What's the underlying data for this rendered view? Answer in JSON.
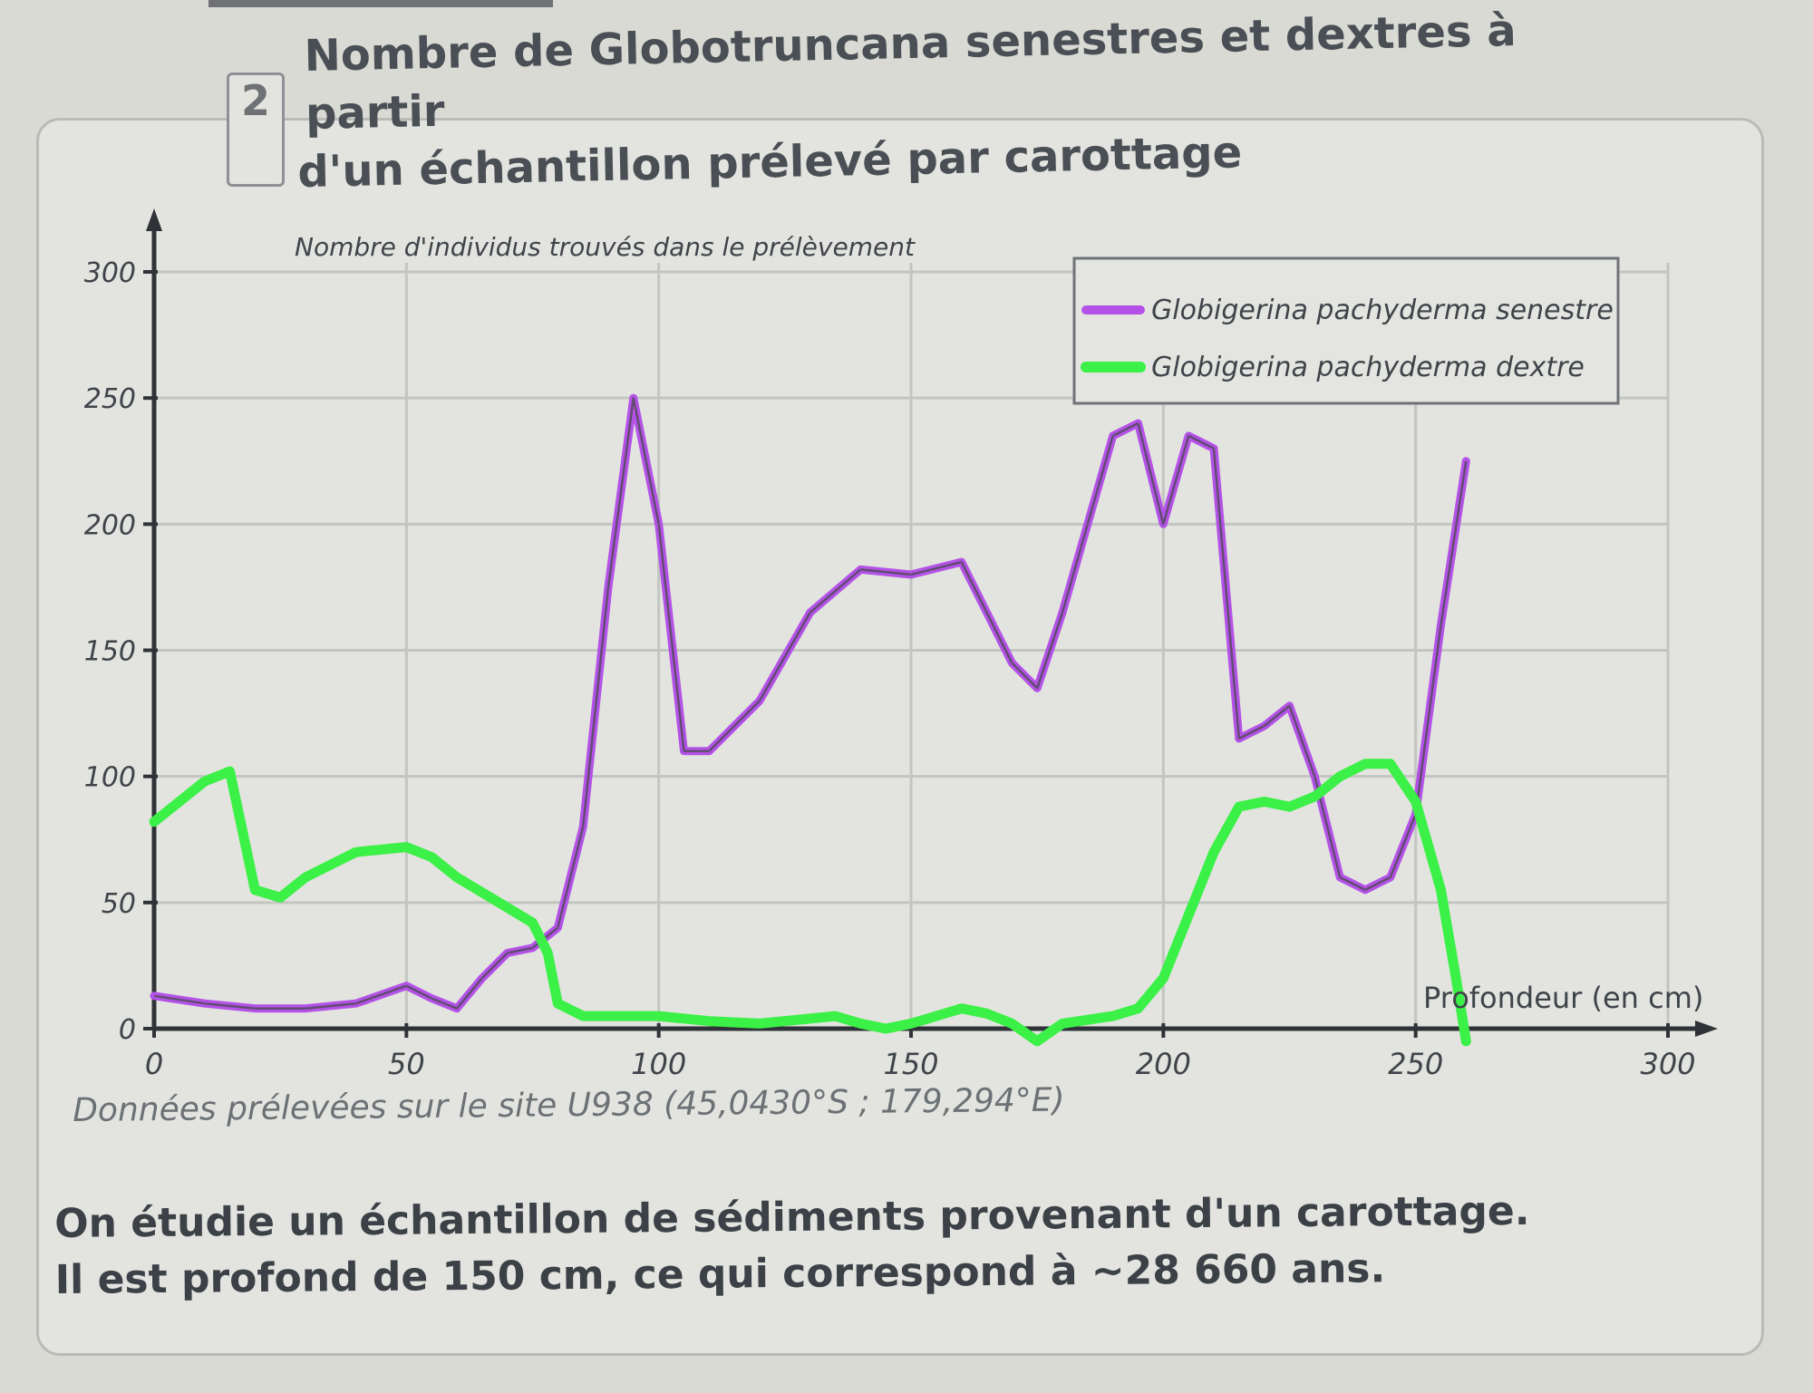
{
  "doc": {
    "number": "2",
    "title_line1": "Nombre de Globotruncana senestres et dextres à partir",
    "title_line2": "d'un échantillon prélevé par carottage",
    "source": "Données prélevées sur le site U938 (45,0430°S ; 179,294°E)",
    "footer_line1": "On étudie un échantillon de sédiments provenant d'un carottage.",
    "footer_line2": "Il est profond de 150 cm, ce qui correspond à ~28 660 ans."
  },
  "chart_data": {
    "type": "line",
    "title": "",
    "ylabel": "Nombre d'individus trouvés dans le prélèvement",
    "xlabel": "Profondeur (en cm)",
    "xlim": [
      0,
      300
    ],
    "ylim": [
      0,
      300
    ],
    "xticks": [
      0,
      50,
      100,
      150,
      200,
      250,
      300
    ],
    "yticks": [
      0,
      50,
      100,
      150,
      200,
      250,
      300
    ],
    "grid": true,
    "legend_position": "top-right",
    "series": [
      {
        "name": "Globigerina pachyderma senestre",
        "color": "#b452e8",
        "x": [
          0,
          10,
          20,
          30,
          40,
          50,
          55,
          60,
          65,
          70,
          75,
          80,
          85,
          90,
          95,
          100,
          105,
          110,
          120,
          130,
          140,
          150,
          160,
          170,
          175,
          180,
          185,
          190,
          195,
          200,
          205,
          210,
          215,
          220,
          225,
          230,
          235,
          240,
          245,
          250,
          255,
          260
        ],
        "y": [
          13,
          10,
          8,
          8,
          10,
          17,
          12,
          8,
          20,
          30,
          32,
          40,
          80,
          175,
          250,
          200,
          110,
          110,
          130,
          165,
          182,
          180,
          185,
          145,
          135,
          165,
          200,
          235,
          240,
          200,
          235,
          230,
          115,
          120,
          128,
          100,
          60,
          55,
          60,
          85,
          160,
          225
        ]
      },
      {
        "name": "Globigerina pachyderma dextre",
        "color": "#3bf046",
        "x": [
          0,
          10,
          15,
          20,
          25,
          30,
          40,
          50,
          55,
          60,
          70,
          75,
          78,
          80,
          85,
          90,
          100,
          110,
          120,
          130,
          135,
          140,
          145,
          150,
          155,
          160,
          165,
          170,
          175,
          180,
          190,
          195,
          200,
          205,
          210,
          215,
          220,
          225,
          230,
          235,
          240,
          245,
          250,
          255,
          258,
          260
        ],
        "y": [
          82,
          98,
          102,
          55,
          52,
          60,
          70,
          72,
          68,
          60,
          48,
          42,
          30,
          10,
          5,
          5,
          5,
          3,
          2,
          4,
          5,
          2,
          0,
          2,
          5,
          8,
          6,
          2,
          -5,
          2,
          5,
          8,
          20,
          45,
          70,
          88,
          90,
          88,
          92,
          100,
          105,
          105,
          90,
          55,
          20,
          -5
        ]
      }
    ]
  }
}
